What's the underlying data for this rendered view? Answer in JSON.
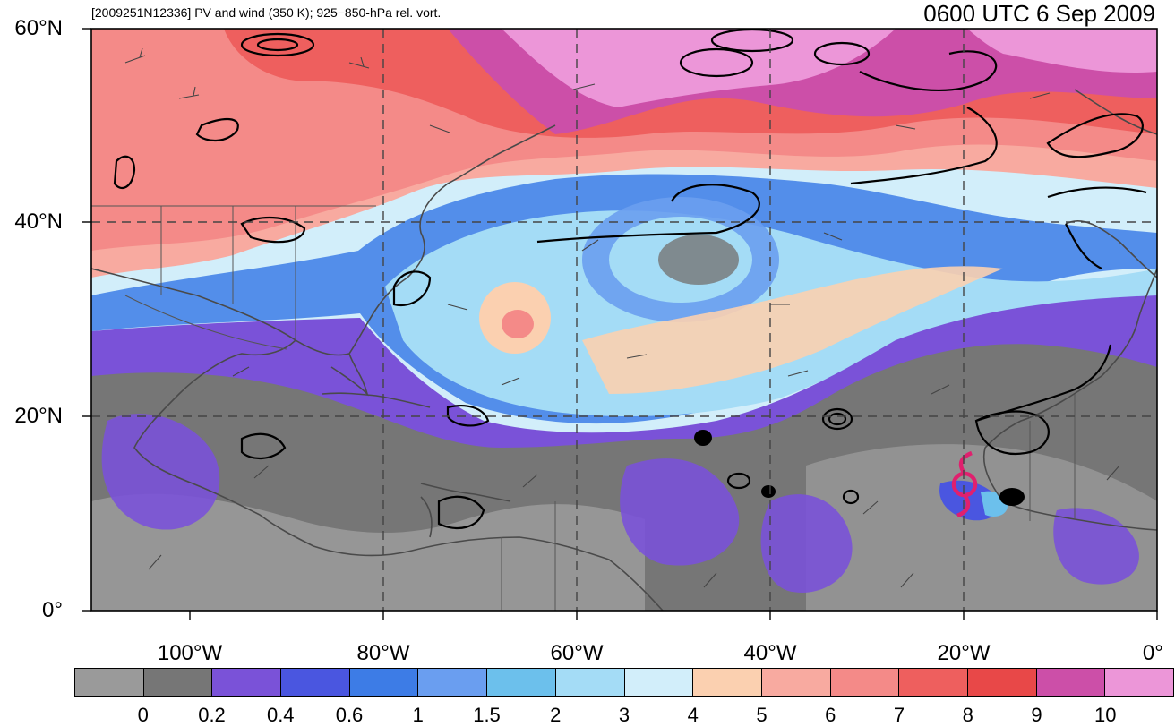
{
  "header": {
    "left_title": "[2009251N12336] PV and wind (350 K); 925−850-hPa rel. vort.",
    "right_title": "0600 UTC 6 Sep 2009"
  },
  "axes": {
    "lat_labels": [
      "60°N",
      "40°N",
      "20°N",
      "0°"
    ],
    "lon_labels": [
      "100°W",
      "80°W",
      "60°W",
      "40°W",
      "20°W",
      "0°"
    ],
    "lat_range": [
      0,
      60
    ],
    "lon_range": [
      -110,
      0
    ],
    "gridlines": "dashed"
  },
  "colorbar": {
    "colors": [
      "#9a9a9a",
      "#767676",
      "#7a52d8",
      "#4a56e0",
      "#3d7ce6",
      "#6a9ef0",
      "#6cc0ec",
      "#a4dcf6",
      "#d2eefa",
      "#fbd0b0",
      "#f8aaa0",
      "#f48a88",
      "#ee5f5e",
      "#e84848",
      "#cc4fa8",
      "#ec96d8"
    ],
    "labels": [
      "0",
      "0.2",
      "0.4",
      "0.6",
      "1",
      "1.5",
      "2",
      "3",
      "4",
      "5",
      "6",
      "7",
      "8",
      "9",
      "10"
    ]
  },
  "storm_symbol": {
    "name": "tropical-cyclone",
    "color": "#e0206e"
  }
}
